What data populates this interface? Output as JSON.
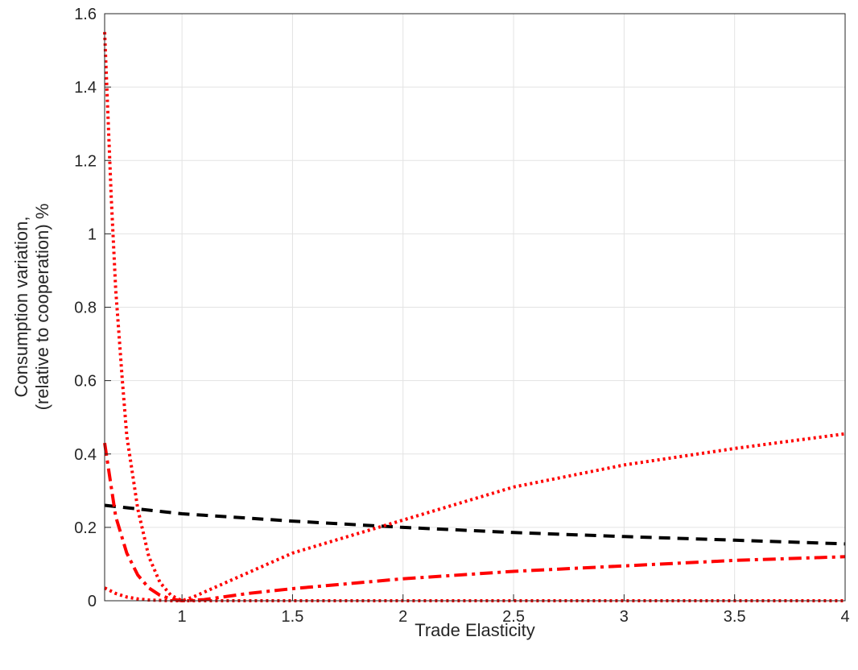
{
  "chart_data": {
    "type": "line",
    "xlabel": "Trade Elasticity",
    "ylabel": "Consumption variation,",
    "ylabel_line2": "(relative to cooperation) %",
    "xlim": [
      0.65,
      4
    ],
    "ylim": [
      0,
      1.6
    ],
    "xticks": [
      1,
      1.5,
      2,
      2.5,
      3,
      3.5,
      4
    ],
    "xtick_labels": [
      "1",
      "1.5",
      "2",
      "2.5",
      "3",
      "3.5",
      "4"
    ],
    "yticks": [
      0,
      0.2,
      0.4,
      0.6,
      0.8,
      1,
      1.2,
      1.4,
      1.6
    ],
    "ytick_labels": [
      "0",
      "0.2",
      "0.4",
      "0.6",
      "0.8",
      "1",
      "1.2",
      "1.4",
      "1.6"
    ],
    "grid": true,
    "series": [
      {
        "style": "dashed",
        "color": "#000000",
        "x": [
          0.65,
          1,
          1.5,
          2,
          2.5,
          3,
          3.5,
          4
        ],
        "y": [
          0.26,
          0.237,
          0.217,
          0.2,
          0.186,
          0.175,
          0.165,
          0.155
        ]
      },
      {
        "style": "dotted",
        "color": "#ff0000",
        "x": [
          0.65,
          0.68,
          0.7,
          0.73,
          0.75,
          0.8,
          0.85,
          0.9,
          0.95,
          1.0,
          1.05,
          1.2,
          1.5,
          2,
          2.5,
          3,
          3.5,
          4
        ],
        "y": [
          1.55,
          1.1,
          0.85,
          0.6,
          0.45,
          0.25,
          0.12,
          0.05,
          0.015,
          0.0,
          0.01,
          0.05,
          0.13,
          0.22,
          0.31,
          0.37,
          0.415,
          0.455
        ]
      },
      {
        "style": "dashdot",
        "color": "#ff0000",
        "x": [
          0.65,
          0.7,
          0.75,
          0.8,
          0.85,
          0.9,
          0.95,
          1.0,
          1.1,
          1.3,
          1.5,
          2,
          2.5,
          3,
          3.5,
          4
        ],
        "y": [
          0.43,
          0.23,
          0.13,
          0.07,
          0.035,
          0.015,
          0.005,
          0.0,
          0.003,
          0.02,
          0.033,
          0.06,
          0.08,
          0.095,
          0.11,
          0.12
        ]
      },
      {
        "style": "dotted",
        "color": "#ff0000",
        "x": [
          0.65,
          0.7,
          0.75,
          0.8,
          0.85,
          0.9,
          0.95,
          1.0,
          1.5,
          2,
          2.5,
          3,
          3.5,
          4
        ],
        "y": [
          0.035,
          0.02,
          0.01,
          0.005,
          0.002,
          0.001,
          0.0,
          0.0,
          0.0,
          0.0,
          0.0,
          0.0,
          0.0,
          0.0
        ]
      }
    ]
  }
}
